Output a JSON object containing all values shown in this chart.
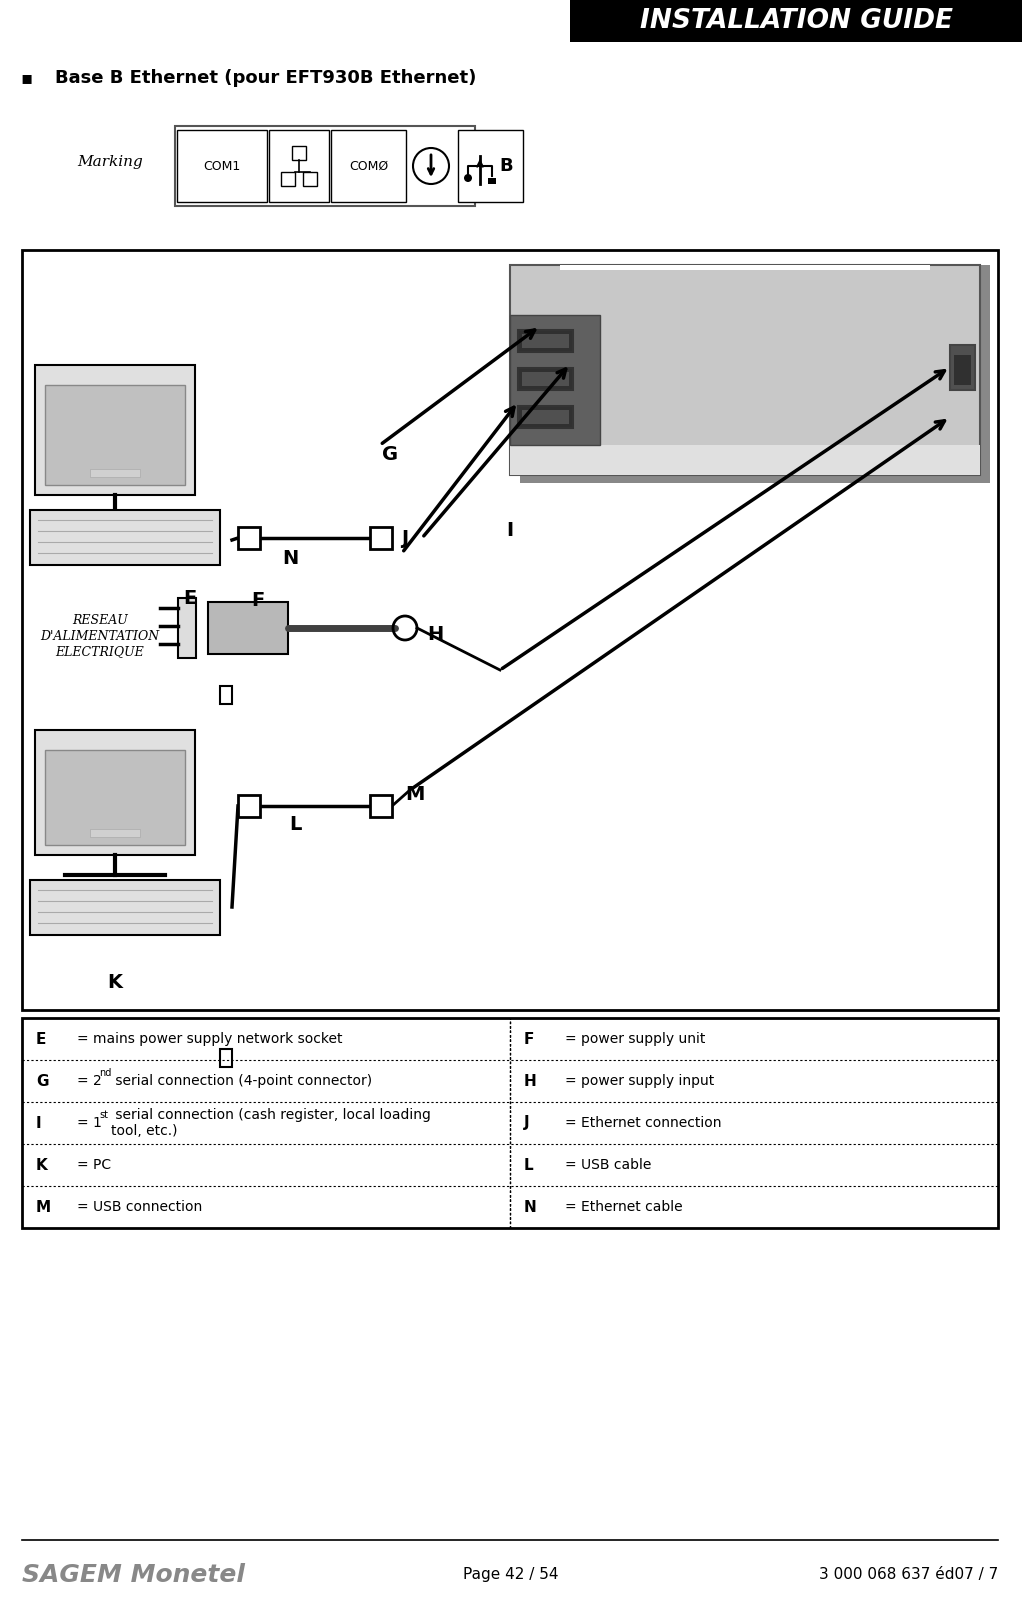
{
  "title_text": "INSTALLATION GUIDE",
  "title_bg": "#000000",
  "title_fg": "#ffffff",
  "bullet_text": "Base B Ethernet (pour EFT930B Ethernet)",
  "marking_label": "Marking",
  "page_text": "Page 42 / 54",
  "ref_text": "3 000 068 637 éd07 / 7",
  "sagem_text": "SAGEM Monetel",
  "legend_rows": [
    [
      "E",
      "= mains power supply network socket",
      "F",
      "= power supply unit"
    ],
    [
      "G",
      "= 2nd serial connection (4-point connector)",
      "H",
      "= power supply input"
    ],
    [
      "I",
      "= 1st serial connection (cash register, local loading\ntool, etc.)",
      "J",
      "= Ethernet connection"
    ],
    [
      "K",
      "= PC",
      "L",
      "= USB cable"
    ],
    [
      "M",
      "= USB connection",
      "N",
      "= Ethernet cable"
    ]
  ],
  "bg_color": "#ffffff"
}
